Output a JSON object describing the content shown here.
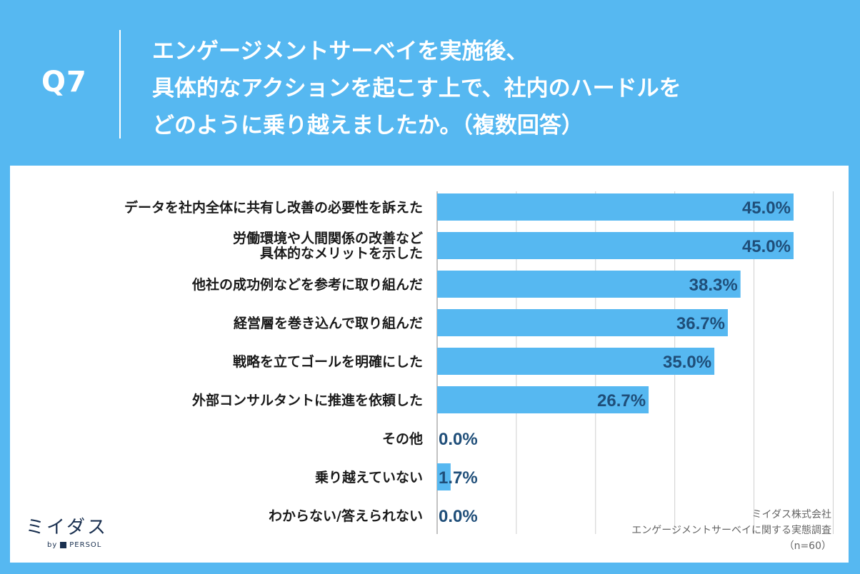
{
  "header": {
    "qnum": "Q7",
    "question": "エンゲージメントサーベイを実施後、\n具体的なアクションを起こす上で、社内のハードルを\nどのように乗り越えましたか。（複数回答）"
  },
  "chart_data": {
    "type": "bar",
    "orientation": "horizontal",
    "categories": [
      [
        "データを社内全体に共有し改善の必要性を訴えた"
      ],
      [
        "労働環境や人間関係の改善など",
        "具体的なメリットを示した"
      ],
      [
        "他社の成功例などを参考に取り組んだ"
      ],
      [
        "経営層を巻き込んで取り組んだ"
      ],
      [
        "戦略を立てゴールを明確にした"
      ],
      [
        "外部コンサルタントに推進を依頼した"
      ],
      [
        "その他"
      ],
      [
        "乗り越えていない"
      ],
      [
        "わからない/答えられない"
      ]
    ],
    "values": [
      45.0,
      45.0,
      38.3,
      36.7,
      35.0,
      26.7,
      0.0,
      1.7,
      0.0
    ],
    "value_labels": [
      "45.0%",
      "45.0%",
      "38.3%",
      "36.7%",
      "35.0%",
      "26.7%",
      "0.0%",
      "1.7%",
      "0.0%"
    ],
    "xlim": [
      0,
      50
    ],
    "grid": true,
    "bar_color": "#56b8f1",
    "label_color": "#1f4e79"
  },
  "credit": {
    "line1": "ミイダス株式会社",
    "line2": "エンゲージメントサーベイに関する実態調査",
    "line3": "（n=60）"
  },
  "logo": {
    "main": "ミイダス",
    "sub_by": "by",
    "sub_brand": "PERSOL"
  }
}
